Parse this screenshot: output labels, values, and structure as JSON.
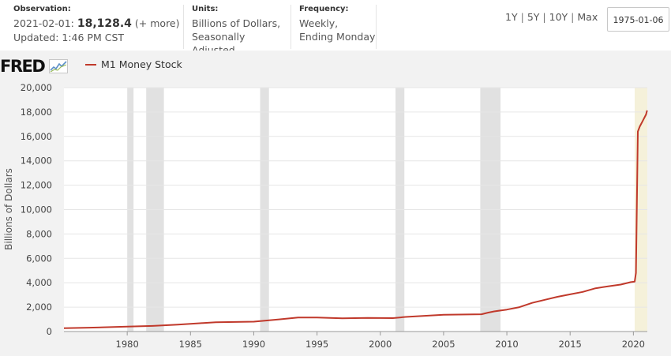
{
  "header": {
    "observation_label": "Observation:",
    "observation_date": "2021-02-01:",
    "observation_value": "18,128.4",
    "observation_more": "(+ more)",
    "updated": "Updated: 1:46 PM CST",
    "units_label": "Units:",
    "units_line1": "Billions of Dollars,",
    "units_line2": "Seasonally Adjusted",
    "frequency_label": "Frequency:",
    "frequency_line1": "Weekly,",
    "frequency_line2": "Ending Monday",
    "range_buttons": [
      "1Y",
      "5Y",
      "10Y",
      "Max"
    ],
    "start_date": "1975-01-06"
  },
  "logo": {
    "text": "FRED"
  },
  "colors": {
    "series": "#c0392b",
    "recession": "#e1e1e1",
    "highlight": "#f5f1da",
    "grid": "#e6e6e6",
    "plot_bg": "#ffffff"
  },
  "chart_data": {
    "type": "line",
    "title": "",
    "ylabel": "Billions of Dollars",
    "xlabel": "",
    "xlim": [
      1975.0,
      2021.1
    ],
    "ylim": [
      0,
      20000
    ],
    "x_ticks": [
      1980,
      1985,
      1990,
      1995,
      2000,
      2005,
      2010,
      2015,
      2020
    ],
    "y_ticks": [
      0,
      2000,
      4000,
      6000,
      8000,
      10000,
      12000,
      14000,
      16000,
      18000,
      20000
    ],
    "y_tick_labels": [
      "0",
      "2,000",
      "4,000",
      "6,000",
      "8,000",
      "10,000",
      "12,000",
      "14,000",
      "16,000",
      "18,000",
      "20,000"
    ],
    "recessions": [
      [
        1980.0,
        1980.5
      ],
      [
        1981.5,
        1982.9
      ],
      [
        1990.5,
        1991.2
      ],
      [
        2001.2,
        2001.9
      ],
      [
        2007.9,
        2009.5
      ]
    ],
    "highlight": [
      2020.1,
      2021.1
    ],
    "series": [
      {
        "name": "M1 Money Stock",
        "x": [
          1975.0,
          1977,
          1980,
          1982,
          1984,
          1986,
          1987,
          1989,
          1990,
          1992,
          1993.5,
          1995,
          1997,
          1999,
          2001,
          2002,
          2005,
          2008,
          2008.5,
          2009,
          2010,
          2011,
          2012,
          2013,
          2014,
          2015,
          2016,
          2017,
          2018,
          2019,
          2019.8,
          2020.1,
          2020.2,
          2020.35,
          2020.5,
          2020.7,
          2021.0,
          2021.08
        ],
        "values": [
          280,
          320,
          400,
          460,
          560,
          700,
          760,
          790,
          810,
          1000,
          1150,
          1150,
          1080,
          1120,
          1100,
          1200,
          1380,
          1420,
          1550,
          1650,
          1800,
          2000,
          2350,
          2600,
          2850,
          3050,
          3250,
          3550,
          3700,
          3850,
          4050,
          4100,
          4800,
          16400,
          16800,
          17200,
          17800,
          18128
        ]
      }
    ]
  }
}
